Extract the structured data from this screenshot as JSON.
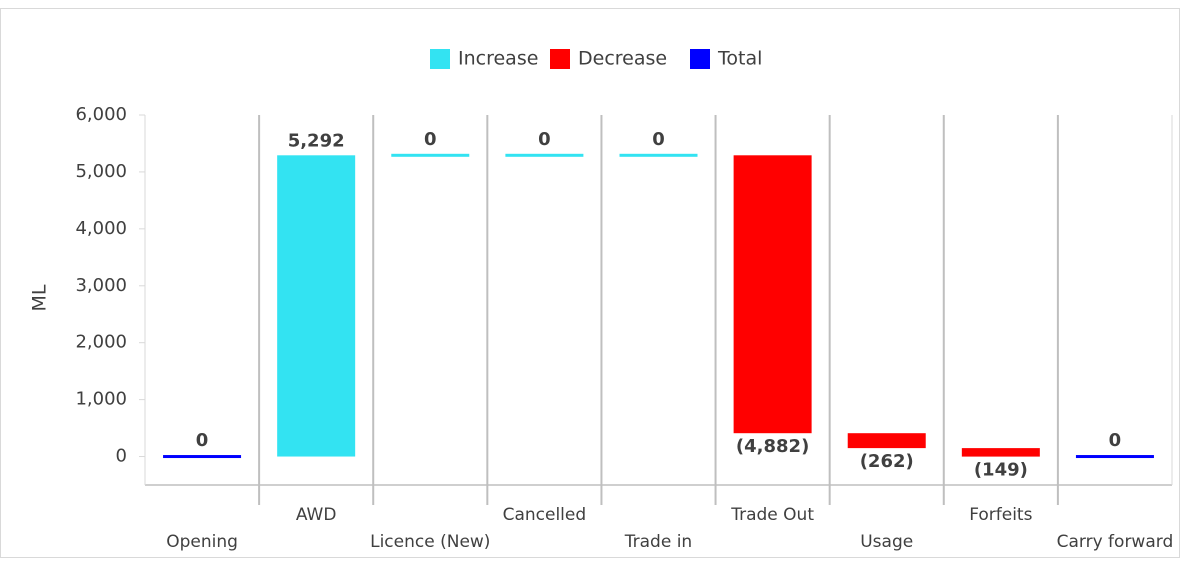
{
  "chart_data": {
    "type": "waterfall",
    "legend": [
      {
        "name": "Increase",
        "color": "#33e3f2"
      },
      {
        "name": "Decrease",
        "color": "#ff0000"
      },
      {
        "name": "Total",
        "color": "#0000ff"
      }
    ],
    "y_label": "ML",
    "categories": [
      "Opening",
      "AWD",
      "Licence (New)",
      "Cancelled",
      "Trade in",
      "Trade Out",
      "Usage",
      "Forfeits",
      "Carry forward"
    ],
    "kinds": [
      "Total",
      "Increase",
      "Increase",
      "Increase",
      "Increase",
      "Decrease",
      "Decrease",
      "Decrease",
      "Total"
    ],
    "values": [
      0,
      5292,
      0,
      0,
      0,
      -4882,
      -262,
      -149,
      0
    ],
    "value_labels": [
      "0",
      "5,292",
      "0",
      "0",
      "0",
      "(4,882)",
      "(262)",
      "(149)",
      "0"
    ],
    "ylim": [
      -500,
      6000
    ],
    "yticks": [
      0,
      {
        "value": 1000,
        "label": "1,000"
      },
      {
        "value": 2000,
        "label": "2,000"
      },
      {
        "value": 3000,
        "label": "3,000"
      },
      {
        "value": 4000,
        "label": "4,000"
      },
      {
        "value": 5000,
        "label": "5,000"
      },
      {
        "value": 6000,
        "label": "6,000"
      }
    ]
  }
}
